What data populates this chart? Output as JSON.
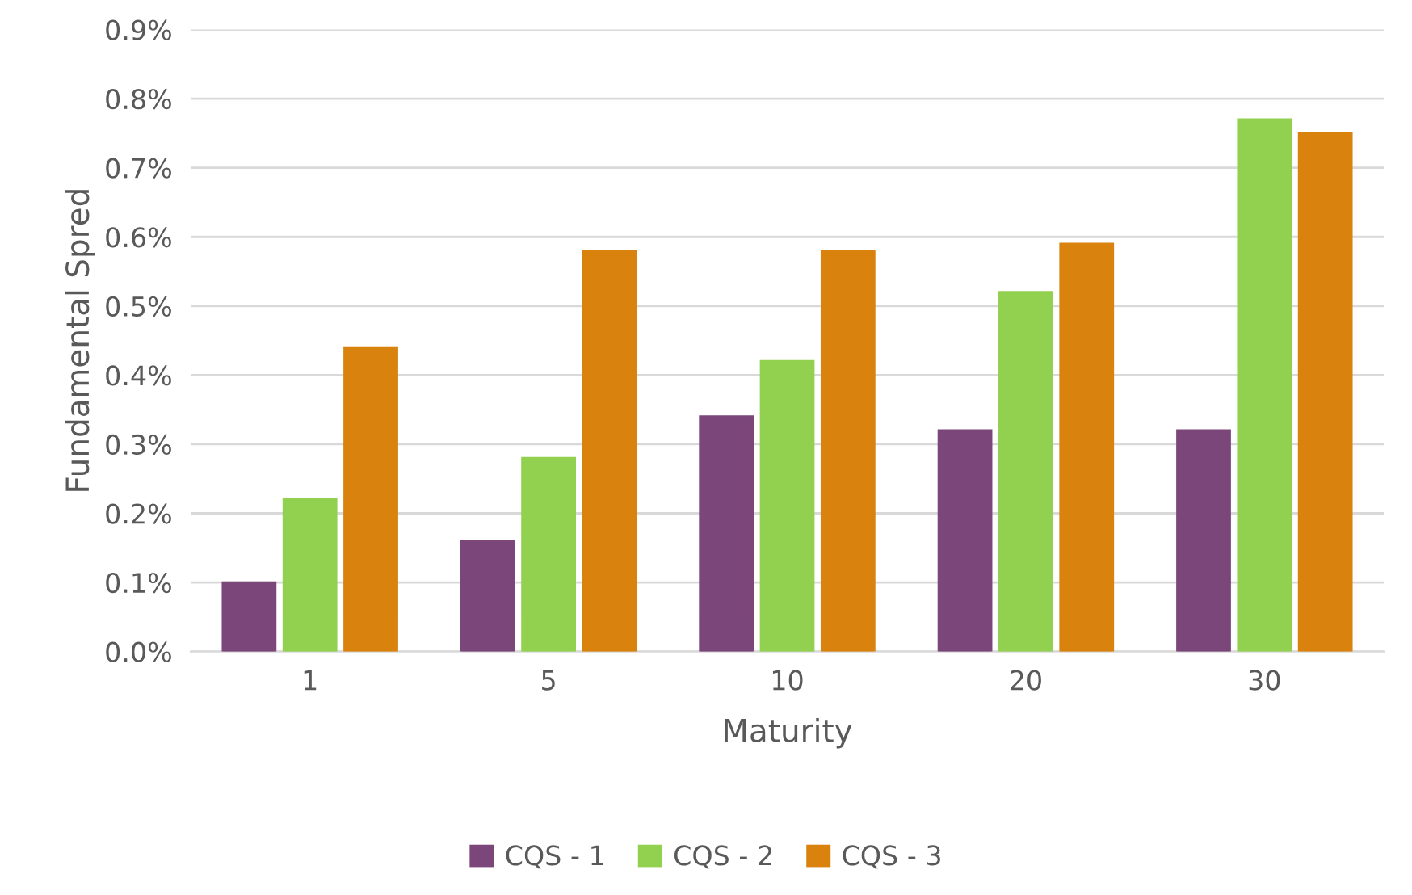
{
  "chart_data": {
    "type": "bar",
    "xlabel": "Maturity",
    "ylabel": "Fundamental Spred",
    "categories": [
      "1",
      "5",
      "10",
      "20",
      "30"
    ],
    "series": [
      {
        "name": "CQS - 1",
        "color": "#7b4679",
        "values": [
          0.1,
          0.16,
          0.34,
          0.32,
          0.32
        ]
      },
      {
        "name": "CQS - 2",
        "color": "#92d050",
        "values": [
          0.22,
          0.28,
          0.42,
          0.52,
          0.77
        ]
      },
      {
        "name": "CQS - 3",
        "color": "#d9820e",
        "values": [
          0.44,
          0.58,
          0.58,
          0.59,
          0.75
        ]
      }
    ],
    "ylim": [
      0,
      0.9
    ],
    "yticks": [
      {
        "value": 0,
        "label": "0.0%"
      },
      {
        "value": 0.1,
        "label": "0.1%"
      },
      {
        "value": 0.2,
        "label": "0.2%"
      },
      {
        "value": 0.3,
        "label": "0.3%"
      },
      {
        "value": 0.4,
        "label": "0.4%"
      },
      {
        "value": 0.5,
        "label": "0.5%"
      },
      {
        "value": 0.6,
        "label": "0.6%"
      },
      {
        "value": 0.7,
        "label": "0.7%"
      },
      {
        "value": 0.8,
        "label": "0.8%"
      },
      {
        "value": 0.9,
        "label": "0.9%"
      }
    ],
    "grid": "y",
    "legend": "bottom"
  }
}
